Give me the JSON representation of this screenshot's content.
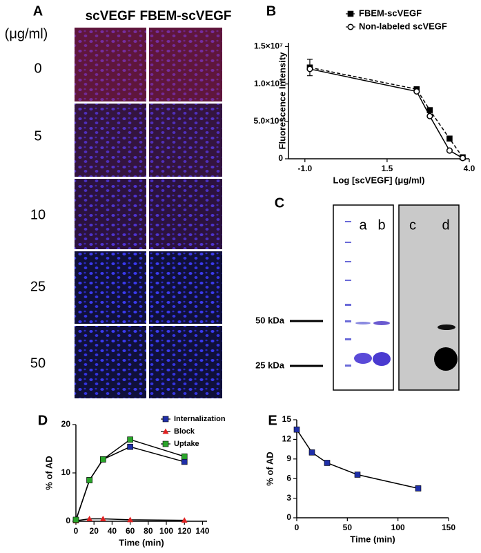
{
  "panel_a": {
    "label": "A",
    "unit": "(μg/ml)",
    "columns": [
      "scVEGF",
      "FBEM-scVEGF"
    ],
    "rows": [
      "0",
      "5",
      "10",
      "25",
      "50"
    ]
  },
  "panel_c": {
    "label": "C",
    "lanes": [
      "a",
      "b",
      "c",
      "d"
    ],
    "markers": [
      "50 kDa",
      "25 kDa"
    ]
  },
  "chart_data": [
    {
      "type": "line",
      "panel_label": "B",
      "xlabel": "Log [scVEGF] (μg/ml)",
      "ylabel": "Fluorescence Intensity",
      "x": [
        -0.85,
        2.4,
        2.8,
        3.4,
        3.8
      ],
      "series": [
        {
          "name": "FBEM-scVEGF",
          "color": "#000000",
          "marker": "square",
          "dash": true,
          "values": [
            12200000,
            9300000,
            6500000,
            2700000,
            200000
          ],
          "errors": [
            1100000,
            null,
            null,
            null,
            null
          ]
        },
        {
          "name": "Non-labeled scVEGF",
          "color": "#000000",
          "marker": "circle-open",
          "dash": false,
          "values": [
            12000000,
            9000000,
            5700000,
            1100000,
            100000
          ]
        }
      ],
      "xlim": [
        -1.5,
        4.0
      ],
      "ylim": [
        0,
        15500000
      ],
      "xticks": [
        {
          "value": -1,
          "label": "-1.0"
        },
        1.5,
        {
          "value": 4,
          "label": "4.0"
        }
      ],
      "yticks": [
        0,
        {
          "value": 5000000,
          "label": "5.0×10⁶"
        },
        {
          "value": 10000000,
          "label": "1.0×10⁷"
        },
        {
          "value": 15000000,
          "label": "1.5×10⁷"
        }
      ],
      "legend": "top"
    },
    {
      "type": "line",
      "panel_label": "D",
      "xlabel": "Time (min)",
      "ylabel": "% of AD",
      "x": [
        0,
        15,
        30,
        60,
        120
      ],
      "series": [
        {
          "name": "Internalization",
          "color": "#1f2fa8",
          "marker": "square",
          "dash": false,
          "values": [
            0.2,
            8.5,
            12.8,
            15.4,
            12.3
          ]
        },
        {
          "name": "Block",
          "color": "#e02020",
          "marker": "triangle",
          "dash": false,
          "values": [
            0.1,
            0.5,
            0.5,
            0.3,
            0.2
          ]
        },
        {
          "name": "Uptake",
          "color": "#2aa52a",
          "marker": "square",
          "dash": false,
          "values": [
            0.3,
            8.5,
            12.8,
            16.9,
            13.4
          ]
        }
      ],
      "xlim": [
        0,
        145
      ],
      "ylim": [
        0,
        20
      ],
      "xticks": [
        0,
        20,
        40,
        60,
        80,
        100,
        120,
        140
      ],
      "yticks": [
        0,
        10,
        20
      ],
      "legend": "top-right"
    },
    {
      "type": "line",
      "panel_label": "E",
      "xlabel": "Time (min)",
      "ylabel": "% of AD",
      "x": [
        0,
        15,
        30,
        60,
        120
      ],
      "series": [
        {
          "color": "#1f2fa8",
          "marker": "square",
          "dash": false,
          "values": [
            13.5,
            10.0,
            8.4,
            6.6,
            4.5
          ]
        }
      ],
      "xlim": [
        0,
        150
      ],
      "ylim": [
        0,
        15
      ],
      "xticks": [
        0,
        50,
        100,
        150
      ],
      "yticks": [
        0,
        3,
        6,
        9,
        12,
        15
      ]
    }
  ]
}
